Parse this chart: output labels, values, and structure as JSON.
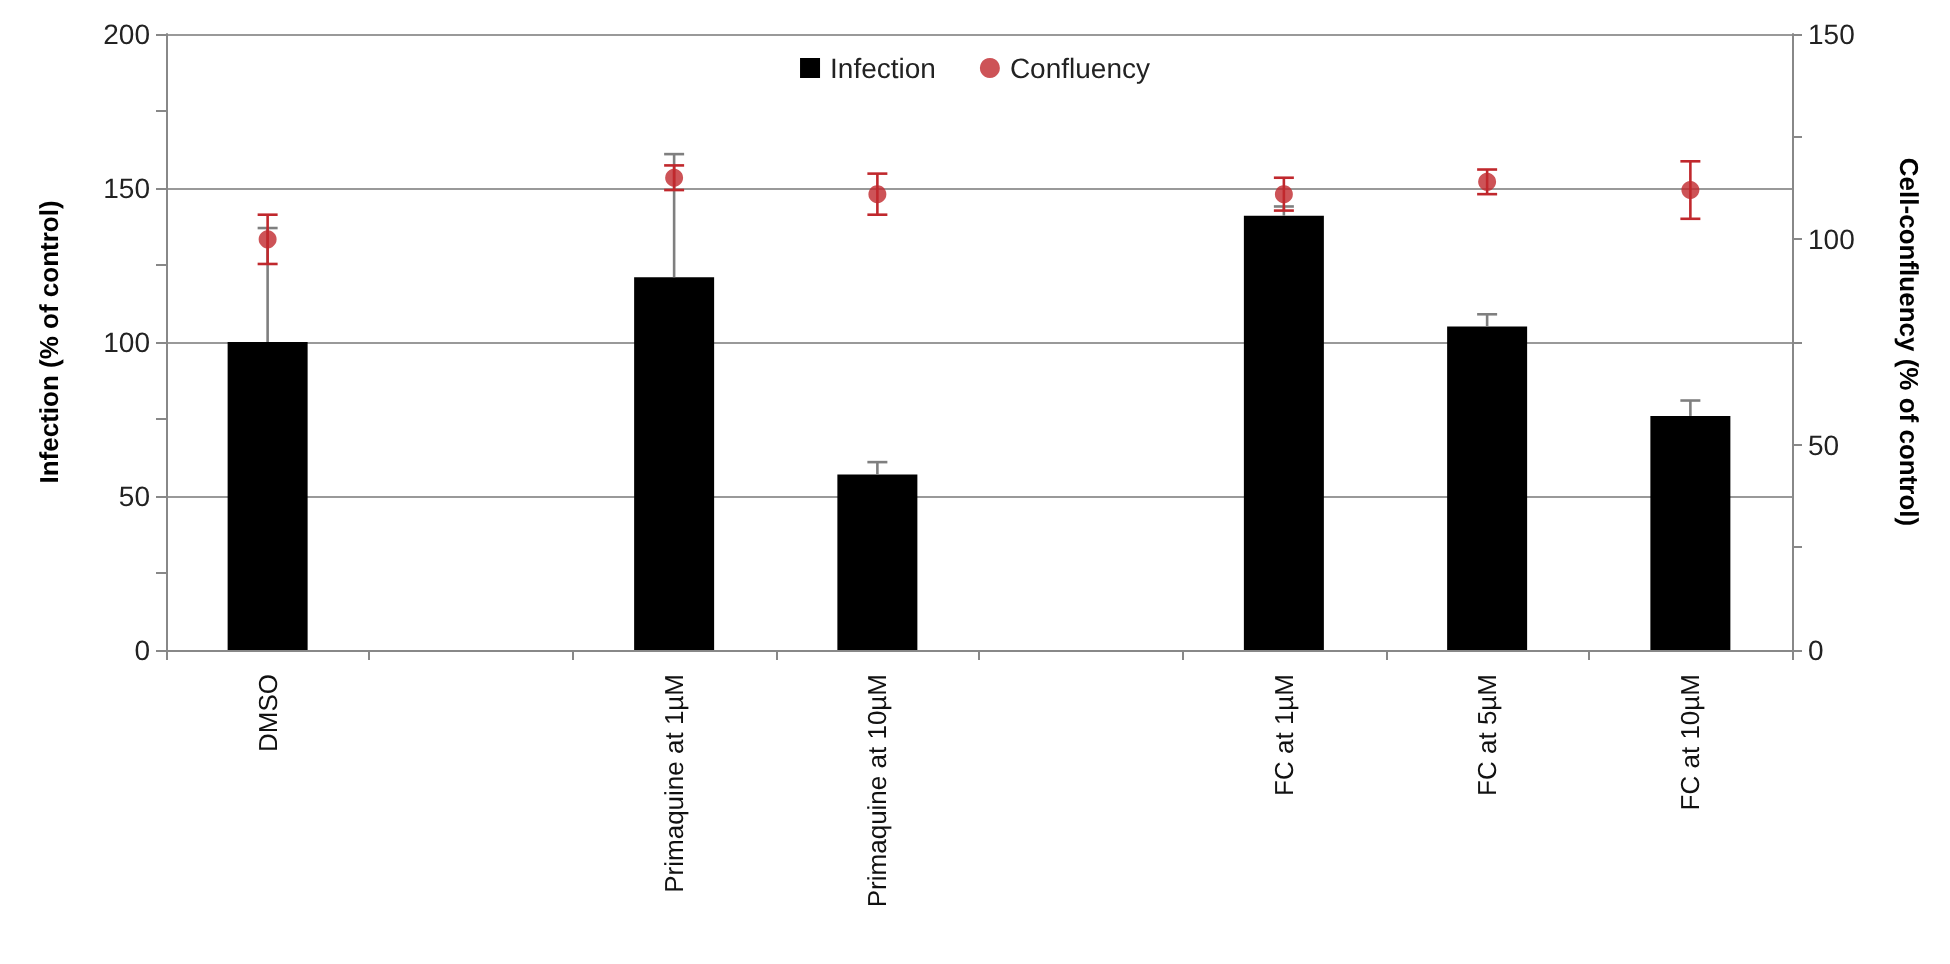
{
  "chart_data": {
    "type": "bar",
    "categories": [
      "DMSO",
      null,
      "Primaquine at 1µM",
      "Primaquine at 10µM",
      null,
      "FC at 1µM",
      "FC at 5µM",
      "FC at 10µM"
    ],
    "ylabel": "Infection (% of control)",
    "y2label": "Cell-confluency (% of control)",
    "series": [
      {
        "name": "Infection",
        "color": "#000000",
        "values": [
          100,
          null,
          121,
          57,
          null,
          141,
          105,
          76
        ],
        "errors": [
          [
            100,
            137
          ],
          null,
          [
            121,
            161
          ],
          [
            57,
            61
          ],
          null,
          [
            141,
            144
          ],
          [
            105,
            109
          ],
          [
            76,
            81
          ]
        ]
      },
      {
        "name": "Confluency",
        "type": "scatter",
        "axis": "y2",
        "color": "#c0282d",
        "values": [
          100,
          null,
          115,
          111,
          null,
          111,
          114,
          112
        ],
        "errors": [
          6,
          null,
          3,
          5,
          null,
          4,
          3,
          7
        ]
      }
    ],
    "ylim": [
      0,
      200
    ],
    "yticks": [
      0,
      {
        "value": 25,
        "label": null
      },
      50,
      {
        "value": 75,
        "label": null
      },
      100,
      {
        "value": 125,
        "label": null
      },
      150,
      {
        "value": 175,
        "label": null
      },
      200
    ],
    "y2lim": [
      0,
      150
    ],
    "y2ticks": [
      0,
      {
        "value": 25,
        "label": null
      },
      50,
      {
        "value": 75,
        "label": null
      },
      100,
      {
        "value": 125,
        "label": null
      },
      150
    ],
    "grid": "y",
    "legend": "top",
    "marker": "circle"
  }
}
